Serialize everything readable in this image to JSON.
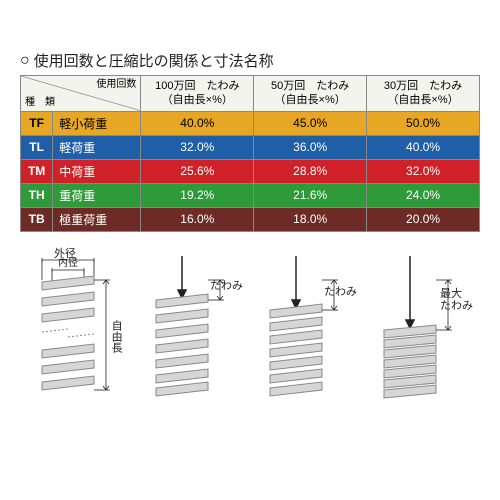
{
  "title": {
    "circle": "○",
    "text": "使用回数と圧縮比の関係と寸法名称"
  },
  "header": {
    "typeCol": "種　類",
    "useCountLabel": "使用回数",
    "cols": [
      {
        "count": "100万回",
        "deflect": "たわみ",
        "sub": "（自由長×%）"
      },
      {
        "count": "50万回",
        "deflect": "たわみ",
        "sub": "（自由長×%）"
      },
      {
        "count": "30万回",
        "deflect": "たわみ",
        "sub": "（自由長×%）"
      }
    ]
  },
  "rows": [
    {
      "code": "TF",
      "name": "軽小荷重",
      "v": [
        "40.0%",
        "45.0%",
        "50.0%"
      ],
      "cls": "row-tf"
    },
    {
      "code": "TL",
      "name": "軽荷重",
      "v": [
        "32.0%",
        "36.0%",
        "40.0%"
      ],
      "cls": "row-tl"
    },
    {
      "code": "TM",
      "name": "中荷重",
      "v": [
        "25.6%",
        "28.8%",
        "32.0%"
      ],
      "cls": "row-tm"
    },
    {
      "code": "TH",
      "name": "重荷重",
      "v": [
        "19.2%",
        "21.6%",
        "24.0%"
      ],
      "cls": "row-th"
    },
    {
      "code": "TB",
      "name": "極重荷重",
      "v": [
        "16.0%",
        "18.0%",
        "20.0%"
      ],
      "cls": "row-tb"
    }
  ],
  "labels": {
    "outer": "外径",
    "inner": "内径",
    "free": "自由長",
    "deflect": "たわみ",
    "maxDeflect": "最大\nたわみ"
  },
  "style": {
    "springStroke": "#888888",
    "springFill": "#d0d0d0",
    "arrowColor": "#222222"
  }
}
